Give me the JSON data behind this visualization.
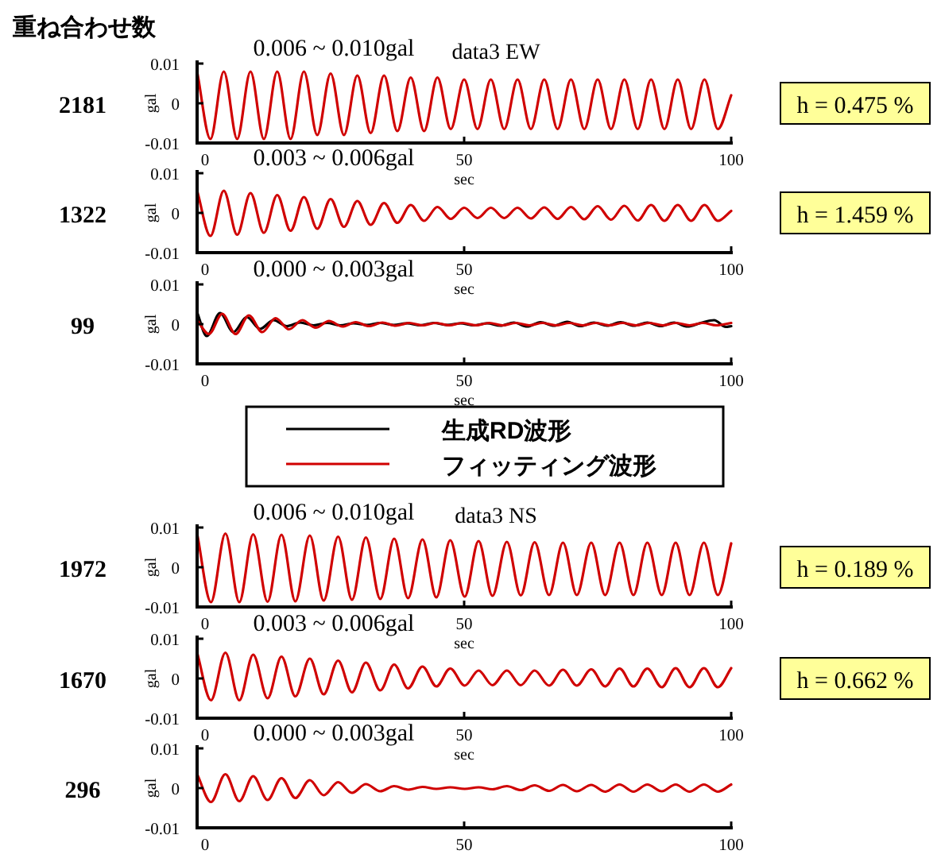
{
  "chart_data": [
    {
      "type": "line",
      "title": "0.006 ~ 0.010gal",
      "subtitle": "data3 EW",
      "xlabel": "sec",
      "ylabel": "gal",
      "xlim": [
        0,
        100
      ],
      "ylim": [
        -0.01,
        0.01
      ],
      "xticks": [
        0,
        50,
        100
      ],
      "yticks": [
        -0.01,
        0,
        0.01
      ],
      "annotations": [
        "2181",
        "h = 0.475 %",
        "重ね合わせ数"
      ],
      "x": [
        0,
        2.5,
        5,
        7.5,
        10,
        12.5,
        15,
        17.5,
        20,
        22.5,
        25,
        27.5,
        30,
        32.5,
        35,
        37.5,
        40,
        42.5,
        45,
        47.5,
        50,
        52.5,
        55,
        57.5,
        60,
        62.5,
        65,
        67.5,
        70,
        72.5,
        75,
        77.5,
        80,
        82.5,
        85,
        87.5,
        90,
        92.5,
        95,
        97.5,
        100
      ],
      "series": [
        {
          "color": "#d00000",
          "values": [
            0.008,
            -0.009,
            0.008,
            -0.009,
            0.008,
            -0.009,
            0.008,
            -0.009,
            0.008,
            -0.008,
            0.0075,
            -0.008,
            0.007,
            -0.0075,
            0.007,
            -0.007,
            0.0065,
            -0.007,
            0.0065,
            -0.0065,
            0.006,
            -0.0065,
            0.006,
            -0.0065,
            0.006,
            -0.0065,
            0.006,
            -0.0065,
            0.006,
            -0.0065,
            0.006,
            -0.0065,
            0.006,
            -0.0065,
            0.006,
            -0.0065,
            0.006,
            -0.0065,
            0.006,
            -0.0065,
            0.002
          ]
        }
      ]
    },
    {
      "type": "line",
      "title": "0.003 ~ 0.006gal",
      "xlabel": "sec",
      "ylabel": "gal",
      "xlim": [
        0,
        100
      ],
      "ylim": [
        -0.01,
        0.01
      ],
      "xticks": [
        0,
        50,
        100
      ],
      "yticks": [
        -0.01,
        0,
        0.01
      ],
      "annotations": [
        "1322",
        "h = 1.459 %"
      ],
      "x": [
        0,
        2.5,
        5,
        7.5,
        10,
        12.5,
        15,
        17.5,
        20,
        22.5,
        25,
        27.5,
        30,
        32.5,
        35,
        37.5,
        40,
        42.5,
        45,
        47.5,
        50,
        52.5,
        55,
        57.5,
        60,
        62.5,
        65,
        67.5,
        70,
        72.5,
        75,
        77.5,
        80,
        82.5,
        85,
        87.5,
        90,
        92.5,
        95,
        97.5,
        100
      ],
      "series": [
        {
          "color": "#d00000",
          "values": [
            0.0056,
            -0.0058,
            0.0056,
            -0.0055,
            0.005,
            -0.005,
            0.0045,
            -0.0045,
            0.004,
            -0.004,
            0.0035,
            -0.0035,
            0.003,
            -0.003,
            0.0025,
            -0.0025,
            0.002,
            -0.002,
            0.0015,
            -0.0015,
            0.0013,
            -0.0013,
            0.0013,
            -0.0013,
            0.0013,
            -0.0014,
            0.0014,
            -0.0015,
            0.0015,
            -0.0016,
            0.0017,
            -0.0017,
            0.0018,
            -0.0019,
            0.002,
            -0.002,
            0.002,
            -0.002,
            0.002,
            -0.002,
            0.0005
          ]
        }
      ]
    },
    {
      "type": "line",
      "title": "0.000 ~ 0.003gal",
      "xlabel": "sec",
      "ylabel": "gal",
      "xlim": [
        0,
        100
      ],
      "ylim": [
        -0.01,
        0.01
      ],
      "xticks": [
        0,
        50,
        100
      ],
      "yticks": [
        -0.01,
        0,
        0.01
      ],
      "annotations": [
        "99"
      ],
      "legend": "bottom",
      "series": [
        {
          "name": "生成RD波形",
          "color": "#000000",
          "x": [
            0,
            1.8,
            4.3,
            6.8,
            9.3,
            11.8,
            14.3,
            16.8,
            19.3,
            21.8,
            24.3,
            26.8,
            29.3,
            31.8,
            34.3,
            36.8,
            39.3,
            41.8,
            44.3,
            46.8,
            49.3,
            51.8,
            54.3,
            56.8,
            59.3,
            61.8,
            64.3,
            66.8,
            69.3,
            71.8,
            74.3,
            76.8,
            79.3,
            81.8,
            84.3,
            86.8,
            89.3,
            91.8,
            94.3,
            96.8,
            99,
            100
          ],
          "values": [
            0.003,
            -0.003,
            0.0028,
            -0.002,
            0.0018,
            -0.0012,
            0.001,
            -0.0005,
            0.0004,
            -0.0003,
            0.0003,
            -0.0003,
            0.0002,
            -0.0002,
            0.0003,
            -0.0002,
            0.0002,
            -0.0003,
            0.0003,
            -0.0002,
            0.0002,
            -0.0003,
            0.0002,
            -0.0004,
            0.0004,
            -0.0006,
            0.0005,
            -0.0004,
            0.0006,
            -0.0005,
            0.0004,
            -0.0004,
            0.0005,
            -0.0004,
            0.0004,
            -0.0005,
            0.0004,
            -0.0006,
            0.0003,
            0.001,
            -0.0007,
            -0.0005
          ]
        },
        {
          "name": "フィッティング波形",
          "color": "#d00000",
          "x": [
            0,
            2.2,
            4.7,
            7.2,
            9.7,
            12.2,
            14.7,
            17.2,
            19.7,
            22.2,
            24.7,
            27.2,
            29.7,
            32.2,
            34.7,
            37.2,
            39.7,
            42.2,
            44.7,
            47.2,
            49.7,
            52.2,
            54.7,
            57.2,
            59.7,
            62.2,
            64.7,
            67.2,
            69.7,
            72.2,
            74.7,
            77.2,
            79.7,
            82.2,
            84.7,
            87.2,
            89.7,
            92.2,
            94.7,
            97.2,
            100
          ],
          "values": [
            0.001,
            -0.0025,
            0.0026,
            -0.0025,
            0.0022,
            -0.002,
            0.0015,
            -0.0013,
            0.001,
            -0.0009,
            0.0008,
            -0.0006,
            0.0005,
            -0.0005,
            0.0004,
            -0.0004,
            0.0003,
            -0.0003,
            0.0003,
            -0.0003,
            0.0003,
            -0.0003,
            0.0003,
            -0.0003,
            0.0003,
            -0.0003,
            0.0003,
            -0.0003,
            0.0003,
            -0.0003,
            0.0003,
            -0.0003,
            0.0003,
            -0.0003,
            0.0003,
            -0.0003,
            0.0003,
            -0.0003,
            0.0003,
            -0.0003,
            0.0003
          ]
        }
      ]
    },
    {
      "type": "line",
      "title": "0.006 ~ 0.010gal",
      "subtitle": "data3 NS",
      "xlabel": "sec",
      "ylabel": "gal",
      "xlim": [
        0,
        100
      ],
      "ylim": [
        -0.01,
        0.01
      ],
      "xticks": [
        0,
        50,
        100
      ],
      "yticks": [
        -0.01,
        0,
        0.01
      ],
      "annotations": [
        "1972",
        "h = 0.189 %"
      ],
      "x": [
        0,
        2.6,
        5.3,
        7.9,
        10.5,
        13.2,
        15.8,
        18.4,
        21.1,
        23.7,
        26.4,
        29,
        31.6,
        34.3,
        36.9,
        39.5,
        42.2,
        44.8,
        47.4,
        50.1,
        52.7,
        55.3,
        58,
        60.6,
        63.2,
        65.9,
        68.5,
        71.1,
        73.8,
        76.4,
        79.1,
        81.7,
        84.3,
        87,
        89.6,
        92.2,
        94.9,
        97.5,
        100
      ],
      "series": [
        {
          "color": "#d00000",
          "values": [
            0.0085,
            -0.0088,
            0.0085,
            -0.0088,
            0.0083,
            -0.0087,
            0.0082,
            -0.0086,
            0.008,
            -0.0084,
            0.0077,
            -0.0082,
            0.0075,
            -0.008,
            0.0072,
            -0.0078,
            0.007,
            -0.0076,
            0.0068,
            -0.0074,
            0.0066,
            -0.0072,
            0.0064,
            -0.0071,
            0.0063,
            -0.007,
            0.0062,
            -0.007,
            0.0062,
            -0.007,
            0.0062,
            -0.007,
            0.0062,
            -0.007,
            0.0062,
            -0.007,
            0.0062,
            -0.007,
            0.006
          ]
        }
      ]
    },
    {
      "type": "line",
      "title": "0.003 ~ 0.006gal",
      "xlabel": "sec",
      "ylabel": "gal",
      "xlim": [
        0,
        100
      ],
      "ylim": [
        -0.01,
        0.01
      ],
      "xticks": [
        0,
        50,
        100
      ],
      "yticks": [
        -0.01,
        0,
        0.01
      ],
      "annotations": [
        "1670",
        "h = 0.662 %"
      ],
      "x": [
        0,
        2.6,
        5.3,
        7.9,
        10.5,
        13.2,
        15.8,
        18.4,
        21.1,
        23.7,
        26.4,
        29,
        31.6,
        34.3,
        36.9,
        39.5,
        42.2,
        44.8,
        47.4,
        50.1,
        52.7,
        55.3,
        58,
        60.6,
        63.2,
        65.9,
        68.5,
        71.1,
        73.8,
        76.4,
        79.1,
        81.7,
        84.3,
        87,
        89.6,
        92.2,
        94.9,
        97.5,
        100
      ],
      "series": [
        {
          "color": "#d00000",
          "values": [
            0.0065,
            -0.0055,
            0.0065,
            -0.0055,
            0.006,
            -0.005,
            0.0055,
            -0.0045,
            0.005,
            -0.004,
            0.0045,
            -0.0035,
            0.004,
            -0.003,
            0.0035,
            -0.0025,
            0.003,
            -0.002,
            0.0025,
            -0.0018,
            0.002,
            -0.0017,
            0.002,
            -0.0017,
            0.002,
            -0.0018,
            0.0022,
            -0.0018,
            0.0023,
            -0.002,
            0.0025,
            -0.002,
            0.0025,
            -0.0022,
            0.0026,
            -0.0022,
            0.0026,
            -0.0022,
            0.0026
          ]
        }
      ]
    },
    {
      "type": "line",
      "title": "0.000 ~ 0.003gal",
      "ylabel": "gal",
      "xlim": [
        0,
        100
      ],
      "ylim": [
        -0.01,
        0.01
      ],
      "xticks": [
        0,
        50,
        100
      ],
      "yticks": [
        -0.01,
        0,
        0.01
      ],
      "annotations": [
        "296"
      ],
      "x": [
        0,
        2.6,
        5.3,
        7.9,
        10.5,
        13.2,
        15.8,
        18.4,
        21.1,
        23.7,
        26.4,
        29,
        31.6,
        34.3,
        36.9,
        39.5,
        42.2,
        44.8,
        47.4,
        50.1,
        52.7,
        55.3,
        58,
        60.6,
        63.2,
        65.9,
        68.5,
        71.1,
        73.8,
        76.4,
        79.1,
        81.7,
        84.3,
        87,
        89.6,
        92.2,
        94.9,
        97.5,
        100
      ],
      "series": [
        {
          "color": "#d00000",
          "values": [
            0.0035,
            -0.0035,
            0.0035,
            -0.0033,
            0.003,
            -0.003,
            0.0025,
            -0.0025,
            0.002,
            -0.0018,
            0.0015,
            -0.0012,
            0.001,
            -0.0008,
            0.0005,
            -0.0004,
            0.0003,
            -0.0002,
            0.0002,
            -0.0002,
            0.0002,
            -0.0003,
            0.0005,
            -0.0005,
            0.0007,
            -0.0007,
            0.0008,
            -0.0008,
            0.0008,
            -0.0009,
            0.0009,
            -0.0009,
            0.0009,
            -0.0008,
            0.0009,
            -0.0009,
            0.0009,
            -0.0009,
            0.0009
          ]
        }
      ]
    }
  ]
}
